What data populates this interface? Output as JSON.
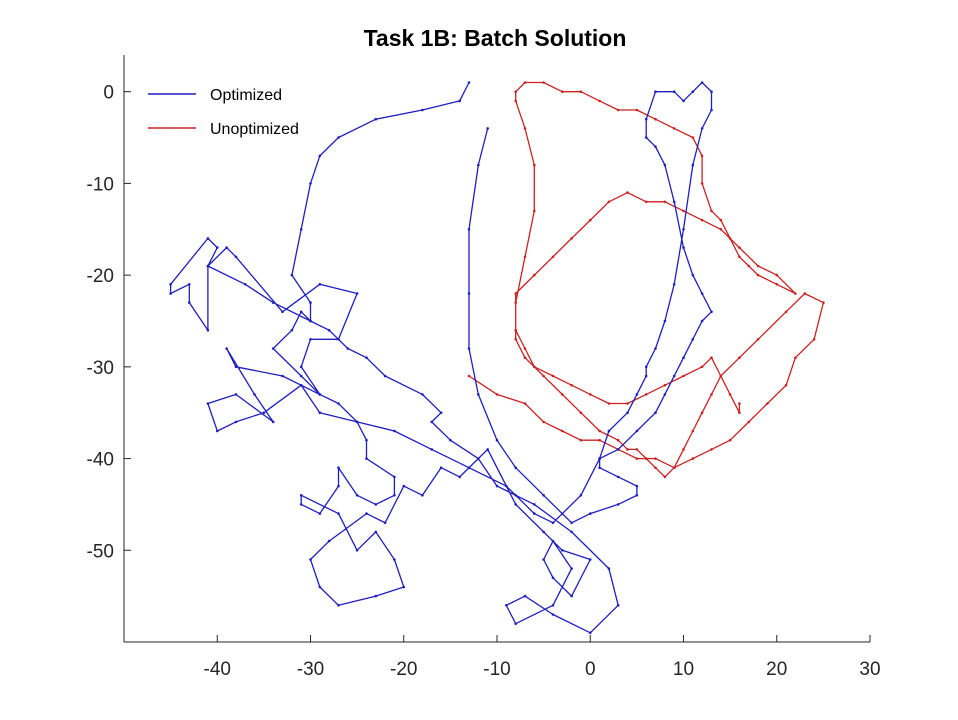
{
  "chart_data": {
    "type": "line",
    "title": "Task 1B: Batch Solution",
    "xlabel": "",
    "ylabel": "",
    "xlim": [
      -50,
      30
    ],
    "ylim": [
      -60,
      4
    ],
    "x_ticks": [
      -40,
      -30,
      -20,
      -10,
      0,
      10,
      20,
      30
    ],
    "y_ticks": [
      0,
      -10,
      -20,
      -30,
      -40,
      -50
    ],
    "grid": false,
    "legend_position": "top-left",
    "series": [
      {
        "name": "Optimized",
        "color": "#1f1fbf",
        "markers": true,
        "x": [
          -13,
          -14,
          -18,
          -23,
          -27,
          -29,
          -30,
          -31,
          -32,
          -30,
          -30,
          -34,
          -37,
          -41,
          -40,
          -41,
          -45,
          -45,
          -43,
          -43,
          -41,
          -41,
          -39,
          -38,
          -33,
          -29,
          -25,
          -27,
          -30,
          -31,
          -29,
          -33,
          -38,
          -39,
          -36,
          -34,
          -38,
          -41,
          -40,
          -38,
          -35,
          -31,
          -29,
          -25,
          -24,
          -24,
          -21,
          -21,
          -23,
          -25,
          -27,
          -27,
          -29,
          -31,
          -31,
          -27,
          -25,
          -23,
          -21,
          -20,
          -23,
          -27,
          -29,
          -30,
          -28,
          -24,
          -22,
          -20,
          -18,
          -16,
          -14,
          -11,
          -8,
          -5,
          -3,
          0,
          -2,
          -4,
          -5,
          -4,
          -2,
          -4,
          -8,
          -9,
          -7,
          -4,
          0,
          3,
          2,
          -2,
          -6,
          -8,
          -10,
          -12,
          -15,
          -17,
          -16,
          -18,
          -22,
          -24,
          -26,
          -28,
          -30,
          -31,
          -32,
          -34,
          -31,
          -29,
          -27,
          -25,
          -21,
          -17,
          -13,
          -9,
          -6,
          -4,
          -1,
          1,
          2,
          4,
          5,
          6,
          6,
          7,
          8,
          9,
          10,
          11,
          12,
          13,
          13,
          12,
          11,
          10,
          9,
          7,
          6,
          6,
          7,
          8,
          9,
          10,
          11,
          12,
          13,
          12,
          11,
          10,
          9,
          8,
          7,
          5,
          3,
          1,
          1,
          3,
          5,
          5,
          3,
          0,
          -2,
          -5,
          -8,
          -10,
          -12,
          -13,
          -13,
          -13,
          -12,
          -11
        ],
        "y": [
          1,
          -1,
          -2,
          -3,
          -5,
          -7,
          -10,
          -15,
          -20,
          -23,
          -25,
          -23,
          -21,
          -19,
          -17,
          -16,
          -21,
          -22,
          -21,
          -23,
          -26,
          -19,
          -17,
          -18,
          -24,
          -21,
          -22,
          -27,
          -27,
          -30,
          -33,
          -31,
          -30,
          -28,
          -33,
          -36,
          -33,
          -34,
          -37,
          -36,
          -35,
          -32,
          -35,
          -36,
          -38,
          -40,
          -42,
          -44,
          -45,
          -44,
          -41,
          -43,
          -46,
          -45,
          -44,
          -46,
          -50,
          -48,
          -51,
          -54,
          -55,
          -56,
          -54,
          -51,
          -49,
          -46,
          -47,
          -43,
          -44,
          -41,
          -42,
          -39,
          -45,
          -48,
          -50,
          -51,
          -55,
          -53,
          -51,
          -49,
          -52,
          -56,
          -58,
          -56,
          -55,
          -57,
          -59,
          -56,
          -52,
          -48,
          -45,
          -44,
          -43,
          -40,
          -38,
          -36,
          -35,
          -33,
          -31,
          -29,
          -28,
          -26,
          -25,
          -24,
          -26,
          -28,
          -31,
          -33,
          -34,
          -36,
          -37,
          -39,
          -41,
          -43,
          -46,
          -47,
          -44,
          -40,
          -37,
          -35,
          -33,
          -31,
          -30,
          -28,
          -25,
          -21,
          -15,
          -8,
          -4,
          -2,
          0,
          1,
          0,
          -1,
          0,
          0,
          -3,
          -5,
          -6,
          -8,
          -12,
          -17,
          -20,
          -22,
          -24,
          -25,
          -27,
          -29,
          -31,
          -33,
          -35,
          -37,
          -39,
          -40,
          -41,
          -42,
          -43,
          -44,
          -45,
          -46,
          -47,
          -44,
          -41,
          -38,
          -33,
          -28,
          -22,
          -15,
          -8,
          -4
        ]
      },
      {
        "name": "Unoptimized",
        "color": "#cc2222",
        "markers": true,
        "x": [
          -13,
          -10,
          -7,
          -5,
          -3,
          -1,
          1,
          3,
          5,
          7,
          9,
          11,
          13,
          15,
          17,
          19,
          21,
          22,
          24,
          25,
          23,
          21,
          18,
          16,
          14,
          13,
          12,
          11,
          10,
          9,
          8,
          7,
          6,
          5,
          4,
          3,
          1,
          -1,
          -3,
          -5,
          -7,
          -8,
          -8,
          -7,
          -6,
          -6,
          -7,
          -8,
          -8,
          -7,
          -5,
          -3,
          -1,
          1,
          3,
          5,
          7,
          9,
          11,
          12,
          12,
          13,
          14,
          15,
          16,
          17,
          18,
          20,
          22,
          20,
          18,
          16,
          14,
          12,
          10,
          8,
          6,
          4,
          2,
          0,
          -2,
          -4,
          -6,
          -8,
          -8,
          -7,
          -6,
          -4,
          -2,
          0,
          2,
          4,
          6,
          8,
          10,
          12,
          13,
          14,
          15,
          16,
          16
        ],
        "y": [
          -31,
          -33,
          -34,
          -36,
          -37,
          -38,
          -38,
          -39,
          -40,
          -40,
          -41,
          -40,
          -39,
          -38,
          -36,
          -34,
          -32,
          -29,
          -27,
          -23,
          -22,
          -24,
          -27,
          -29,
          -31,
          -33,
          -35,
          -37,
          -39,
          -41,
          -42,
          -41,
          -40,
          -39,
          -39,
          -38,
          -37,
          -35,
          -33,
          -31,
          -29,
          -27,
          -23,
          -18,
          -13,
          -8,
          -4,
          -1,
          0,
          1,
          1,
          0,
          0,
          -1,
          -2,
          -2,
          -3,
          -4,
          -5,
          -7,
          -10,
          -13,
          -14,
          -16,
          -18,
          -19,
          -20,
          -21,
          -22,
          -20,
          -19,
          -17,
          -15,
          -14,
          -13,
          -12,
          -12,
          -11,
          -12,
          -14,
          -16,
          -18,
          -20,
          -22,
          -26,
          -28,
          -30,
          -31,
          -32,
          -33,
          -34,
          -34,
          -33,
          -32,
          -31,
          -30,
          -29,
          -31,
          -33,
          -35,
          -34
        ]
      }
    ]
  }
}
